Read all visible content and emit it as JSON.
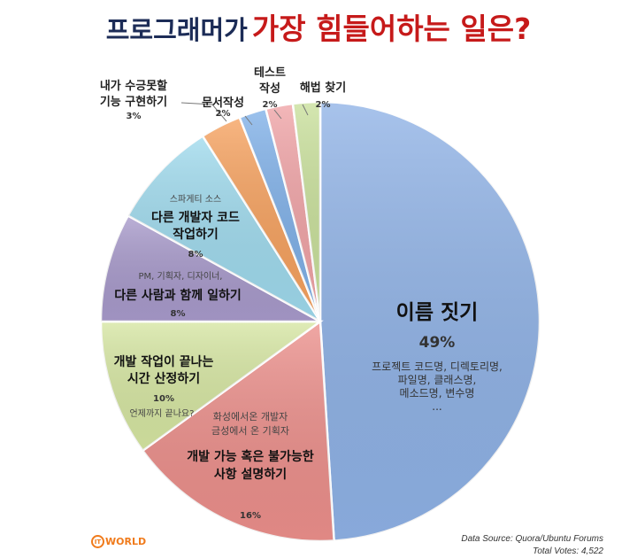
{
  "title": {
    "part1": "프로그래머가",
    "part2": "가장 힘들어하는 일은?"
  },
  "chart_data": {
    "type": "pie",
    "start": "12 o'clock",
    "direction": "clockwise",
    "slices": [
      {
        "key": "naming",
        "value": 49,
        "percent_label": "49%",
        "color": "#8fb2e6",
        "label_lines": [
          "이름 짓기"
        ],
        "note_lines": [
          "프로젝트 코드명, 디렉토리명,",
          "파일명, 클래스명,",
          "메소드명, 변수명",
          "..."
        ]
      },
      {
        "key": "explain",
        "value": 16,
        "percent_label": "16%",
        "color": "#ec8f8b",
        "label_lines": [
          "개발 가능 혹은 불가능한",
          "사항 설명하기"
        ],
        "note_lines": [
          "화성에서온 개발자",
          "금성에서 온 기획자"
        ]
      },
      {
        "key": "estimate",
        "value": 10,
        "percent_label": "10%",
        "color": "#d6e6a2",
        "label_lines": [
          "개발 작업이 끝나는",
          "시간 산정하기"
        ],
        "note_lines": [
          "언제까지 끝나요?"
        ]
      },
      {
        "key": "others",
        "value": 8,
        "percent_label": "8%",
        "color": "#a89acb",
        "label_lines": [
          "다른 사람과 함께 일하기"
        ],
        "note_lines": [
          "PM, 기획자, 디자이너,"
        ]
      },
      {
        "key": "legacy",
        "value": 8,
        "percent_label": "8%",
        "color": "#9fdaed",
        "label_lines": [
          "다른 개발자 코드",
          "작업하기"
        ],
        "note_lines": [
          "스파게티 소스"
        ]
      },
      {
        "key": "unwanted",
        "value": 3,
        "percent_label": "3%",
        "color": "#f6a15e",
        "label_lines": [
          "내가 수긍못할",
          "기능 구현하기"
        ],
        "note_lines": []
      },
      {
        "key": "docs",
        "value": 2,
        "percent_label": "2%",
        "color": "#7fb0e8",
        "label_lines": [
          "문서작성"
        ],
        "note_lines": []
      },
      {
        "key": "tests",
        "value": 2,
        "percent_label": "2%",
        "color": "#f0a3a6",
        "label_lines": [
          "테스트",
          "작성"
        ],
        "note_lines": []
      },
      {
        "key": "solution",
        "value": 2,
        "percent_label": "2%",
        "color": "#c9e09b",
        "label_lines": [
          "해법 찾기"
        ],
        "note_lines": []
      }
    ]
  },
  "source": {
    "line": "Data Source: Quora/Ubuntu Forums",
    "votes": "Total Votes: 4,522"
  },
  "logo": {
    "mark": "IT",
    "text": "WORLD"
  }
}
